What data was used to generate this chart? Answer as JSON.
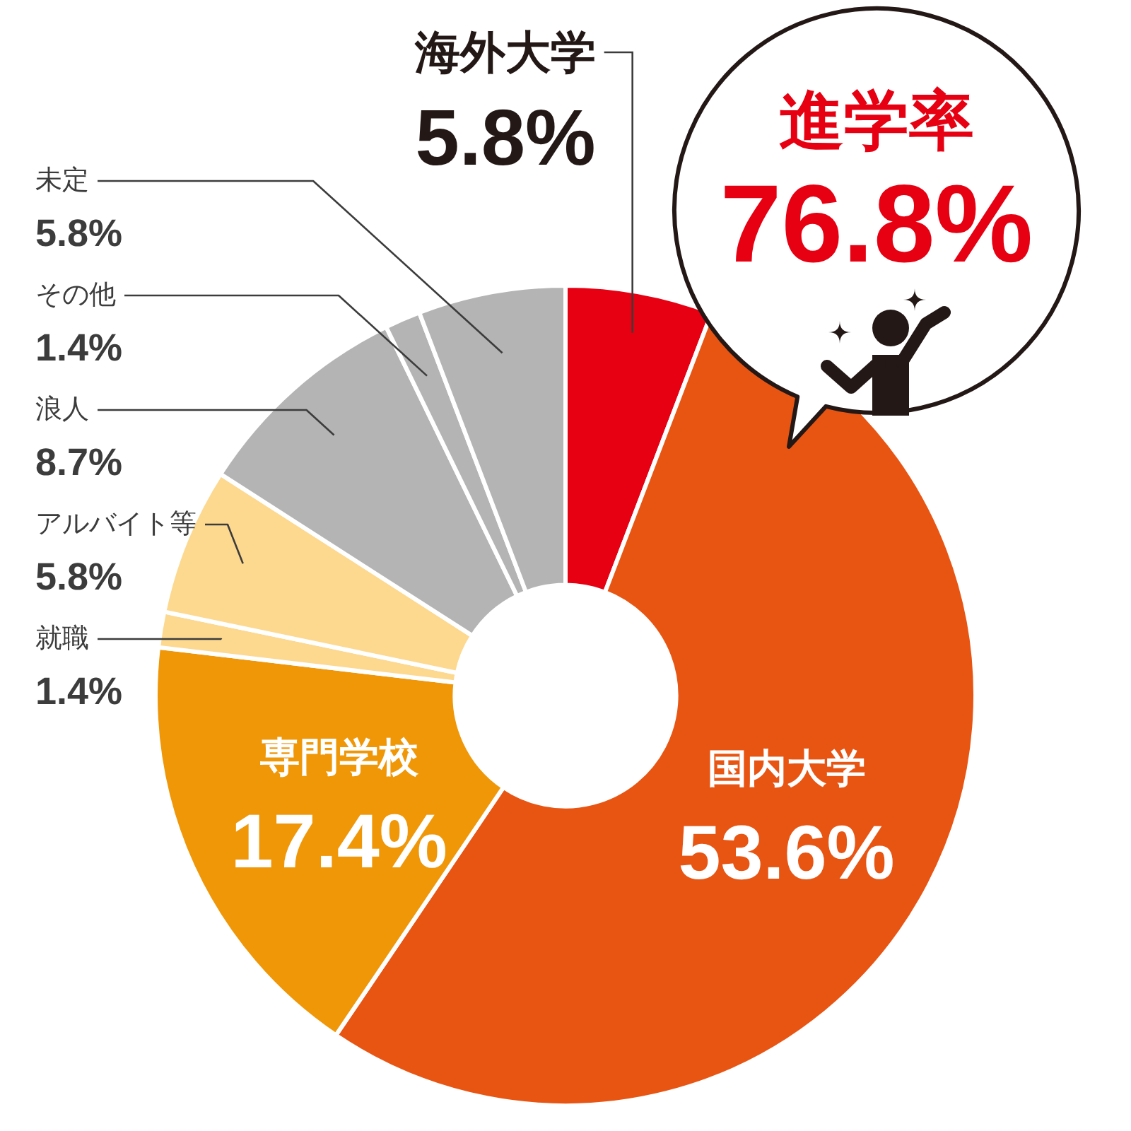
{
  "chart_data": {
    "type": "donut",
    "categories": [
      "海外大学",
      "国内大学",
      "専門学校",
      "就職",
      "アルバイト等",
      "浪人",
      "その他",
      "未定"
    ],
    "values": [
      5.8,
      53.6,
      17.4,
      1.4,
      5.8,
      8.7,
      1.4,
      5.8
    ],
    "value_labels": [
      "5.8%",
      "53.6%",
      "17.4%",
      "1.4%",
      "5.8%",
      "8.7%",
      "1.4%",
      "5.8%"
    ],
    "colors": [
      "#e60012",
      "#e85513",
      "#f09708",
      "#fdd88f",
      "#fdd88f",
      "#b4b4b5",
      "#b4b4b5",
      "#b4b4b5"
    ],
    "annotations": [
      "進学率",
      "76.8%"
    ]
  }
}
